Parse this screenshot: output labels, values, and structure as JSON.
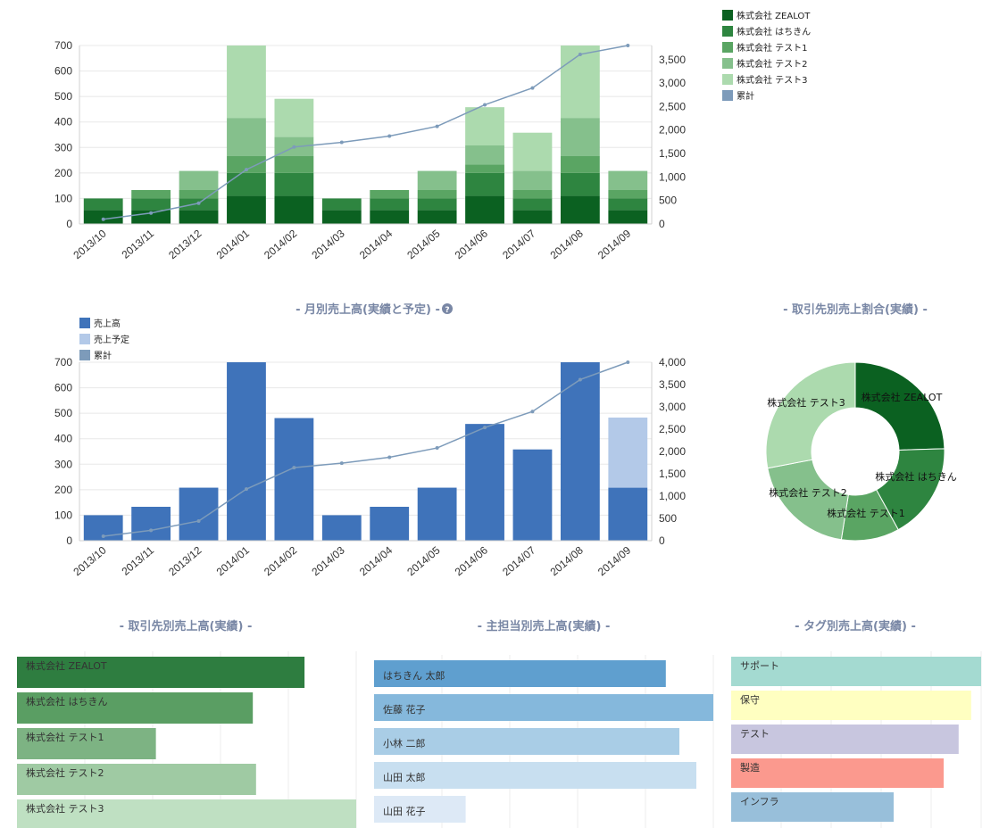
{
  "chart_data": [
    {
      "id": "client-monthly-stacked",
      "type": "bar",
      "stacked": true,
      "title": "",
      "categories": [
        "2013/10",
        "2013/11",
        "2013/12",
        "2014/01",
        "2014/02",
        "2014/03",
        "2014/04",
        "2014/05",
        "2014/06",
        "2014/07",
        "2014/08",
        "2014/09"
      ],
      "series": [
        {
          "name": "株式会社 ZEALOT",
          "color": "#0b6121",
          "values": [
            55,
            55,
            55,
            110,
            110,
            55,
            55,
            55,
            110,
            55,
            110,
            55
          ]
        },
        {
          "name": "株式会社 はちきん",
          "color": "#2e8540",
          "values": [
            45,
            45,
            45,
            90,
            90,
            45,
            45,
            45,
            90,
            45,
            90,
            45
          ]
        },
        {
          "name": "株式会社 テスト1",
          "color": "#5aa563",
          "values": [
            0,
            33,
            33,
            66,
            66,
            0,
            33,
            33,
            33,
            33,
            66,
            33
          ]
        },
        {
          "name": "株式会社 テスト2",
          "color": "#85c08c",
          "values": [
            0,
            0,
            75,
            150,
            75,
            0,
            0,
            75,
            75,
            75,
            150,
            75
          ]
        },
        {
          "name": "株式会社 テスト3",
          "color": "#acdaae",
          "values": [
            0,
            0,
            0,
            300,
            150,
            0,
            0,
            0,
            150,
            150,
            300,
            0
          ]
        },
        {
          "name": "累計",
          "color": "#7d9bba",
          "axis": "right",
          "values": [
            100,
            233,
            441,
            1157,
            1638,
            1738,
            1871,
            2079,
            2537,
            2895,
            3611,
            3819
          ]
        }
      ],
      "ylim": [
        0,
        700
      ],
      "y_ticks": [
        0,
        100,
        200,
        300,
        400,
        500,
        600,
        700
      ],
      "y2lim": [
        0,
        3800
      ],
      "y2_ticks": [
        0,
        500,
        1000,
        1500,
        2000,
        2500,
        3000,
        3500
      ],
      "y2_tick_labels": [
        "0",
        "500",
        "1,000",
        "1,500",
        "2,000",
        "2,500",
        "3,000",
        "3,500"
      ],
      "legend_position": "right"
    },
    {
      "id": "monthly-sales",
      "type": "bar",
      "stacked": true,
      "title": "- 月別売上高(実績と予定) -",
      "categories": [
        "2013/10",
        "2013/11",
        "2013/12",
        "2014/01",
        "2014/02",
        "2014/03",
        "2014/04",
        "2014/05",
        "2014/06",
        "2014/07",
        "2014/08",
        "2014/09"
      ],
      "series": [
        {
          "name": "売上高",
          "color": "#3f73ba",
          "values": [
            100,
            133,
            208,
            716,
            481,
            100,
            133,
            208,
            458,
            358,
            716,
            208
          ]
        },
        {
          "name": "売上予定",
          "color": "#b3c9e8",
          "values": [
            0,
            0,
            0,
            0,
            0,
            0,
            0,
            0,
            0,
            0,
            0,
            275
          ]
        },
        {
          "name": "累計",
          "color": "#7d9bba",
          "axis": "right",
          "values": [
            100,
            233,
            441,
            1157,
            1638,
            1738,
            1871,
            2079,
            2537,
            2895,
            3611,
            4094
          ]
        }
      ],
      "ylim": [
        0,
        700
      ],
      "y_ticks": [
        0,
        100,
        200,
        300,
        400,
        500,
        600,
        700
      ],
      "y2lim": [
        0,
        4000
      ],
      "y2_ticks": [
        0,
        500,
        1000,
        1500,
        2000,
        2500,
        3000,
        3500,
        4000
      ],
      "y2_tick_labels": [
        "0",
        "500",
        "1,000",
        "1,500",
        "2,000",
        "2,500",
        "3,000",
        "3,500",
        "4,000"
      ],
      "legend_position": "top-left"
    },
    {
      "id": "client-share-donut",
      "type": "pie",
      "donut": true,
      "title": "- 取引先別売上割合(実績) -",
      "categories": [
        "株式会社 ZEALOT",
        "株式会社 はちきん",
        "株式会社 テスト1",
        "株式会社 テスト2",
        "株式会社 テスト3"
      ],
      "values": [
        24.5,
        17.5,
        10.5,
        19.5,
        28
      ],
      "colors": [
        "#0b6121",
        "#2e8540",
        "#5aa563",
        "#85c08c",
        "#acdaae"
      ]
    },
    {
      "id": "client-sales-hbar",
      "type": "bar",
      "orientation": "horizontal",
      "title": "- 取引先別売上高(実績) -",
      "categories": [
        "株式会社 ZEALOT",
        "株式会社 はちきん",
        "株式会社 テスト1",
        "株式会社 テスト2",
        "株式会社 テスト3"
      ],
      "values": [
        89,
        73,
        43,
        74,
        105
      ],
      "xlim": [
        0,
        105
      ],
      "colors": [
        "#2e7d40",
        "#5a9e63",
        "#7db383",
        "#9fcaa3",
        "#bfe0c2"
      ]
    },
    {
      "id": "owner-sales-hbar",
      "type": "bar",
      "orientation": "horizontal",
      "title": "- 主担当別売上高(実績) -",
      "categories": [
        "はちきん 太郎",
        "佐藤 花子",
        "小林 二郎",
        "山田 太郎",
        "山田 花子"
      ],
      "values": [
        86,
        100,
        90,
        95,
        27
      ],
      "xlim": [
        0,
        100
      ],
      "colors": [
        "#5f9fcf",
        "#85b8dc",
        "#a9cde6",
        "#c8dff0",
        "#dde9f6"
      ]
    },
    {
      "id": "tag-sales-hbar",
      "type": "bar",
      "orientation": "horizontal",
      "title": "- タグ別売上高(実績) -",
      "categories": [
        "サポート",
        "保守",
        "テスト",
        "製造",
        "インフラ"
      ],
      "values": [
        100,
        96,
        91,
        85,
        65
      ],
      "xlim": [
        0,
        100
      ],
      "colors": [
        "#a4dad1",
        "#ffffc1",
        "#c8c6df",
        "#fb998e",
        "#98bfda"
      ]
    }
  ]
}
